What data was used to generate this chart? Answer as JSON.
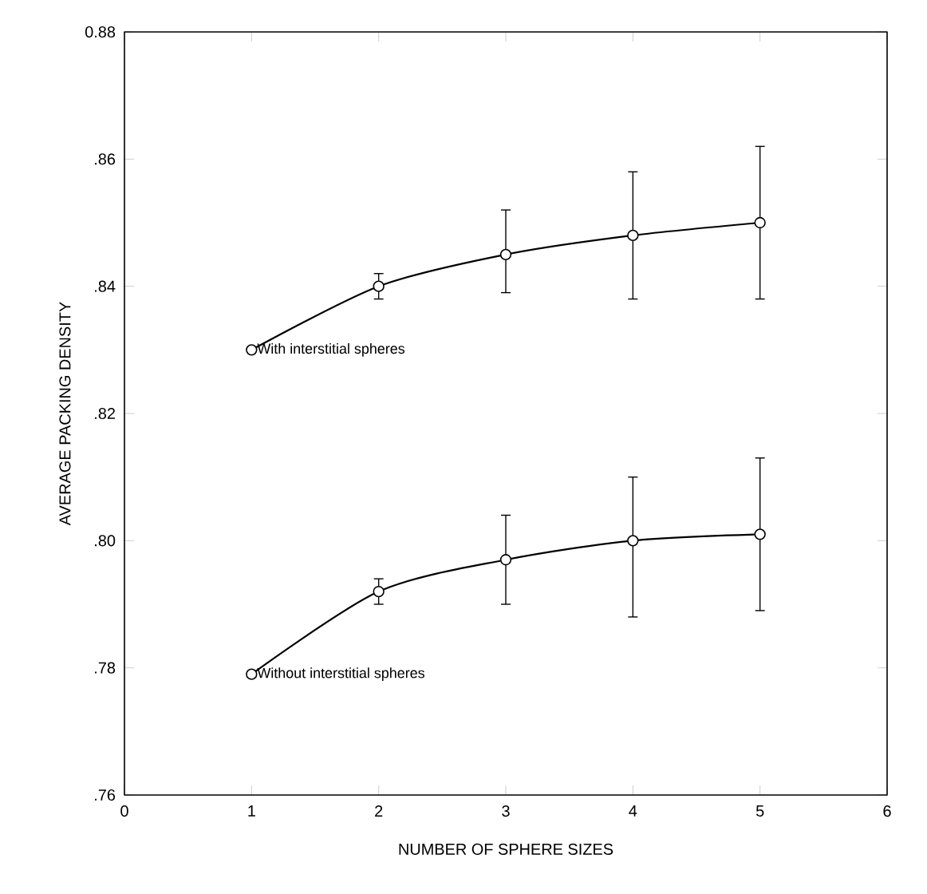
{
  "chart_data": {
    "type": "line",
    "xlabel": "NUMBER OF SPHERE SIZES",
    "ylabel": "AVERAGE PACKING DENSITY",
    "x": [
      1,
      2,
      3,
      4,
      5
    ],
    "series": [
      {
        "name": "With interstitial spheres",
        "color": "#000000",
        "values": [
          0.83,
          0.84,
          0.845,
          0.848,
          0.85
        ],
        "errors": [
          null,
          [
            0.838,
            0.842
          ],
          [
            0.839,
            0.852
          ],
          [
            0.838,
            0.858
          ],
          [
            0.838,
            0.862
          ]
        ]
      },
      {
        "name": "Without interstitial spheres",
        "color": "#000000",
        "values": [
          0.779,
          0.792,
          0.797,
          0.8,
          0.801
        ],
        "errors": [
          null,
          [
            0.79,
            0.794
          ],
          [
            0.79,
            0.804
          ],
          [
            0.788,
            0.81
          ],
          [
            0.789,
            0.813
          ]
        ]
      }
    ],
    "xlim": [
      0,
      6
    ],
    "xticks": [
      0,
      1,
      2,
      3,
      4,
      5,
      6
    ],
    "ylim": [
      0.76,
      0.88
    ],
    "yticks": [
      {
        "value": 0.76,
        "label": ".76"
      },
      {
        "value": 0.78,
        "label": ".78"
      },
      {
        "value": 0.8,
        "label": ".80"
      },
      {
        "value": 0.82,
        "label": ".82"
      },
      {
        "value": 0.84,
        "label": ".84"
      },
      {
        "value": 0.86,
        "label": ".86"
      },
      {
        "value": 0.88,
        "label": "0.88"
      }
    ],
    "grid": false,
    "legend": false,
    "marker": "circle",
    "line_style": "solid"
  }
}
